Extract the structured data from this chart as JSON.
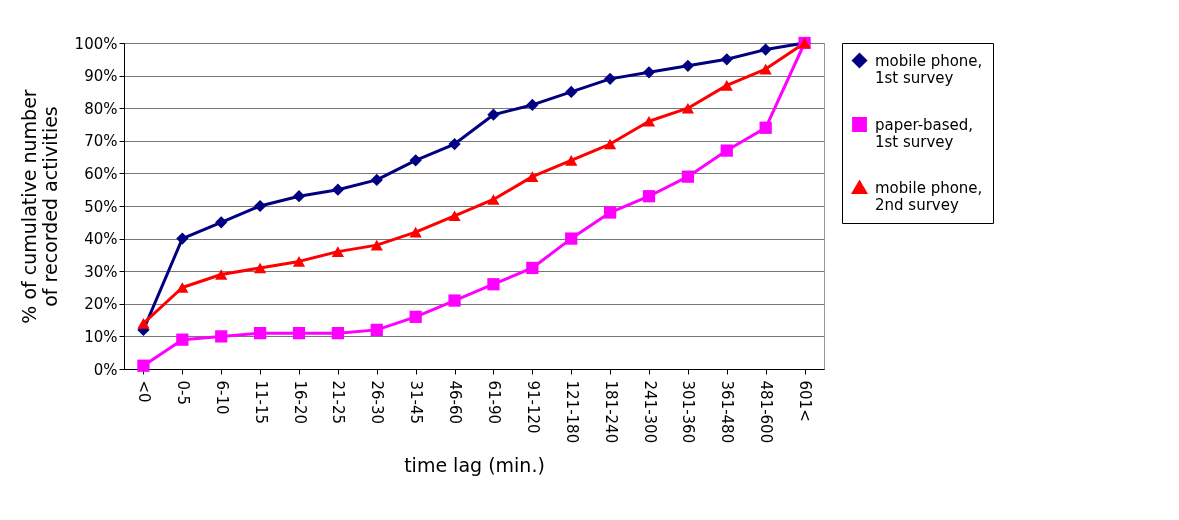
{
  "chart_data": {
    "type": "line",
    "xlabel": "time lag (min.)",
    "ylabel": "% of cumulative number of recorded activities",
    "categories": [
      "<0",
      "0-5",
      "6-10",
      "11-15",
      "16-20",
      "21-25",
      "26-30",
      "31-45",
      "46-60",
      "61-90",
      "91-120",
      "121-180",
      "181-240",
      "241-300",
      "301-360",
      "361-480",
      "481-600",
      "601<"
    ],
    "series": [
      {
        "name": "mobile phone, 1st survey",
        "color": "#000080",
        "marker": "diamond",
        "values": [
          12,
          40,
          45,
          50,
          53,
          55,
          58,
          64,
          69,
          78,
          81,
          85,
          89,
          91,
          93,
          95,
          98,
          100
        ]
      },
      {
        "name": "paper-based, 1st survey",
        "color": "#ff00ff",
        "marker": "square",
        "values": [
          1,
          9,
          10,
          11,
          11,
          11,
          12,
          16,
          21,
          26,
          31,
          40,
          48,
          53,
          59,
          67,
          74,
          100
        ]
      },
      {
        "name": "mobile phone, 2nd survey",
        "color": "#ff0000",
        "marker": "triangle",
        "values": [
          14,
          25,
          29,
          31,
          33,
          36,
          38,
          42,
          47,
          52,
          59,
          64,
          69,
          76,
          80,
          87,
          92,
          100
        ]
      }
    ],
    "ylim": [
      0,
      100
    ],
    "yticks": [
      {
        "value": 0,
        "label": "0%"
      },
      {
        "value": 10,
        "label": "10%"
      },
      {
        "value": 20,
        "label": "20%"
      },
      {
        "value": 30,
        "label": "30%"
      },
      {
        "value": 40,
        "label": "40%"
      },
      {
        "value": 50,
        "label": "50%"
      },
      {
        "value": 60,
        "label": "60%"
      },
      {
        "value": 70,
        "label": "70%"
      },
      {
        "value": 80,
        "label": "80%"
      },
      {
        "value": 90,
        "label": "90%"
      },
      {
        "value": 100,
        "label": "100%"
      }
    ],
    "grid": "y",
    "legend": "right"
  }
}
